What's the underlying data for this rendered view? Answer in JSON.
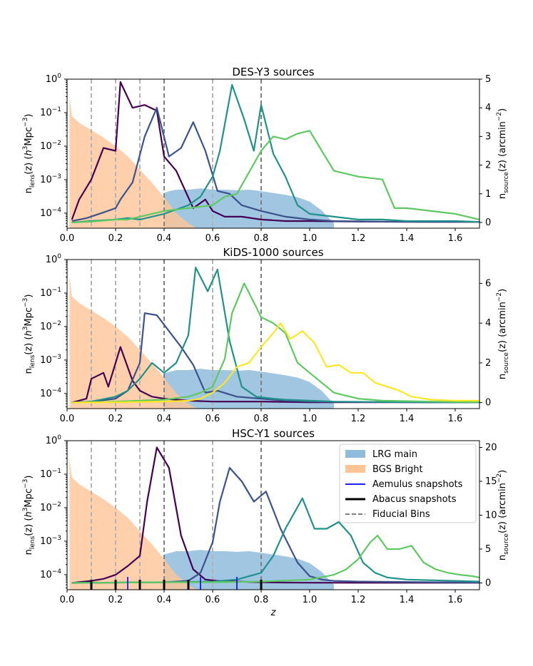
{
  "colors": {
    "lrg_fill": "#8fbcdc",
    "bgs_fill": "#ffc496",
    "aemulus": "#0000ff",
    "abacus": "#000000",
    "fiducial_light": "#b3b3b3",
    "fiducial_dark": "#808080",
    "bin1": "#440154",
    "bin2": "#3b528b",
    "bin3": "#21918c",
    "bin4": "#5ec962",
    "bin5": "#fde725"
  },
  "chart_data": [
    {
      "type": "line",
      "title": "DES-Y3 sources",
      "xlabel": "z",
      "ylabel_left": "n_lens(z) (h^3 Mpc^-3)",
      "ylabel_right": "n_source(z) (arcmin^-2)",
      "xlim": [
        0.0,
        1.7
      ],
      "ylim_left_log": [
        -4.45,
        0
      ],
      "ylim_right": [
        -0.2,
        5
      ],
      "x_ticks": [
        "0.0",
        "0.2",
        "0.4",
        "0.6",
        "0.8",
        "1.0",
        "1.2",
        "1.4",
        "1.6"
      ],
      "y_left_ticks": [
        {
          "exp": -4,
          "label": "10^-4"
        },
        {
          "exp": -3,
          "label": "10^-3"
        },
        {
          "exp": -2,
          "label": "10^-2"
        },
        {
          "exp": -1,
          "label": "10^-1"
        },
        {
          "exp": 0,
          "label": "10^0"
        }
      ],
      "y_right_ticks": [
        0,
        1,
        2,
        3,
        4,
        5
      ],
      "fiducial_bins": [
        0.1,
        0.2,
        0.3,
        0.4,
        0.6,
        0.8
      ],
      "lrg": {
        "x": [
          0.4,
          0.42,
          0.45,
          0.5,
          0.55,
          0.6,
          0.65,
          0.7,
          0.75,
          0.8,
          0.85,
          0.9,
          0.95,
          1.0,
          1.05,
          1.08,
          1.1
        ],
        "y": [
          0.0004,
          0.00045,
          0.0005,
          0.0005,
          0.00055,
          0.0005,
          0.0005,
          0.00048,
          0.0005,
          0.00045,
          0.0004,
          0.00035,
          0.0003,
          0.00022,
          0.00012,
          7e-05,
          5e-05
        ]
      },
      "bgs": {
        "x": [
          0.01,
          0.02,
          0.05,
          0.1,
          0.15,
          0.2,
          0.25,
          0.3,
          0.35,
          0.4,
          0.45,
          0.5,
          0.55,
          0.6
        ],
        "y": [
          0.3,
          0.08,
          0.05,
          0.03,
          0.018,
          0.01,
          0.005,
          0.002,
          0.0008,
          0.0003,
          0.0001,
          5e-05,
          3e-05,
          2e-05
        ]
      },
      "series": [
        {
          "name": "bin1",
          "color_key": "bin1",
          "x": [
            0.02,
            0.05,
            0.1,
            0.15,
            0.2,
            0.22,
            0.27,
            0.32,
            0.37,
            0.4,
            0.45,
            0.52,
            0.57,
            0.6,
            0.65,
            0.72,
            0.8,
            0.9,
            1.0,
            1.2,
            1.4,
            1.6,
            1.7
          ],
          "values": [
            0.1,
            0.8,
            1.5,
            2.6,
            2.5,
            4.9,
            4.0,
            4.1,
            3.9,
            2.3,
            1.8,
            0.5,
            0.8,
            0.4,
            0.2,
            0.2,
            0.1,
            0.05,
            0.05,
            0.03,
            0.02,
            0.02,
            0.02
          ]
        },
        {
          "name": "bin2",
          "color_key": "bin2",
          "x": [
            0.02,
            0.08,
            0.15,
            0.2,
            0.22,
            0.27,
            0.32,
            0.37,
            0.42,
            0.47,
            0.52,
            0.57,
            0.62,
            0.67,
            0.72,
            0.8,
            0.9,
            1.0,
            1.1,
            1.3,
            1.5,
            1.7
          ],
          "values": [
            0.05,
            0.15,
            0.35,
            0.5,
            0.8,
            1.4,
            3.0,
            4.0,
            2.3,
            2.6,
            3.5,
            2.5,
            1.1,
            1.0,
            0.6,
            0.4,
            0.2,
            0.1,
            0.05,
            0.03,
            0.02,
            0.02
          ]
        },
        {
          "name": "bin3",
          "color_key": "bin3",
          "x": [
            0.02,
            0.1,
            0.2,
            0.25,
            0.3,
            0.4,
            0.5,
            0.55,
            0.6,
            0.63,
            0.68,
            0.73,
            0.77,
            0.8,
            0.85,
            0.9,
            0.95,
            1.0,
            1.1,
            1.2,
            1.3,
            1.4,
            1.5,
            1.6,
            1.7
          ],
          "values": [
            0.0,
            0.05,
            0.1,
            0.15,
            0.1,
            0.3,
            0.6,
            0.9,
            1.6,
            2.5,
            4.8,
            3.6,
            2.5,
            4.1,
            2.4,
            1.6,
            0.6,
            0.3,
            0.2,
            0.1,
            0.1,
            0.05,
            0.05,
            0.05,
            0.02
          ]
        },
        {
          "name": "bin4",
          "color_key": "bin4",
          "x": [
            0.02,
            0.1,
            0.2,
            0.25,
            0.3,
            0.35,
            0.4,
            0.5,
            0.6,
            0.65,
            0.7,
            0.8,
            0.85,
            0.9,
            0.95,
            1.0,
            1.05,
            1.1,
            1.15,
            1.2,
            1.3,
            1.35,
            1.4,
            1.5,
            1.6,
            1.7
          ],
          "values": [
            0.0,
            0.03,
            0.1,
            0.1,
            0.2,
            0.3,
            0.4,
            0.5,
            0.6,
            0.9,
            1.0,
            2.5,
            3.0,
            2.9,
            3.1,
            3.2,
            2.5,
            1.8,
            1.7,
            1.6,
            1.5,
            0.5,
            0.5,
            0.4,
            0.3,
            0.1
          ]
        }
      ]
    },
    {
      "type": "line",
      "title": "KiDS-1000 sources",
      "xlabel": "z",
      "ylabel_left": "n_lens(z) (h^3 Mpc^-3)",
      "ylabel_right": "n_source(z) (arcmin^-2)",
      "xlim": [
        0.0,
        1.7
      ],
      "ylim_left_log": [
        -4.45,
        0
      ],
      "ylim_right": [
        -0.3,
        7.2
      ],
      "x_ticks": [
        "0.0",
        "0.2",
        "0.4",
        "0.6",
        "0.8",
        "1.0",
        "1.2",
        "1.4",
        "1.6"
      ],
      "y_left_ticks": [
        {
          "exp": -4,
          "label": "10^-4"
        },
        {
          "exp": -3,
          "label": "10^-3"
        },
        {
          "exp": -2,
          "label": "10^-2"
        },
        {
          "exp": -1,
          "label": "10^-1"
        },
        {
          "exp": 0,
          "label": "10^0"
        }
      ],
      "y_right_ticks": [
        0,
        2,
        4,
        6
      ],
      "fiducial_bins": [
        0.1,
        0.2,
        0.3,
        0.4,
        0.6,
        0.8
      ],
      "lrg": {
        "x": [
          0.4,
          0.45,
          0.5,
          0.55,
          0.6,
          0.65,
          0.7,
          0.75,
          0.8,
          0.85,
          0.9,
          0.95,
          1.0,
          1.05,
          1.08,
          1.1
        ],
        "y": [
          0.0004,
          0.0005,
          0.0005,
          0.00055,
          0.0005,
          0.0005,
          0.00048,
          0.0005,
          0.00045,
          0.0004,
          0.00035,
          0.0003,
          0.00022,
          0.00012,
          7e-05,
          5e-05
        ]
      },
      "bgs": {
        "x": [
          0.01,
          0.02,
          0.05,
          0.1,
          0.15,
          0.2,
          0.25,
          0.3,
          0.35,
          0.4,
          0.45,
          0.5,
          0.55,
          0.6
        ],
        "y": [
          0.3,
          0.08,
          0.05,
          0.03,
          0.018,
          0.01,
          0.005,
          0.002,
          0.0008,
          0.0003,
          0.0001,
          5e-05,
          3e-05,
          2e-05
        ]
      },
      "series": [
        {
          "name": "bin1",
          "color_key": "bin1",
          "x": [
            0.02,
            0.08,
            0.1,
            0.15,
            0.17,
            0.2,
            0.22,
            0.27,
            0.3,
            0.35,
            0.4,
            0.5,
            0.6,
            0.7,
            0.8,
            1.0,
            1.2,
            1.5,
            1.7
          ],
          "values": [
            0.0,
            0.2,
            1.2,
            1.5,
            0.8,
            2.0,
            2.8,
            1.1,
            0.6,
            0.3,
            0.2,
            0.1,
            0.05,
            0.05,
            0.05,
            0.02,
            0.02,
            0.02,
            0.02
          ]
        },
        {
          "name": "bin2",
          "color_key": "bin2",
          "x": [
            0.02,
            0.1,
            0.2,
            0.25,
            0.3,
            0.32,
            0.37,
            0.42,
            0.47,
            0.52,
            0.57,
            0.62,
            0.7,
            0.8,
            0.9,
            1.0,
            1.2,
            1.5,
            1.7
          ],
          "values": [
            0.0,
            0.05,
            0.2,
            0.6,
            2.0,
            4.5,
            4.4,
            3.6,
            2.8,
            1.9,
            0.5,
            0.6,
            0.3,
            0.2,
            0.1,
            0.05,
            0.03,
            0.02,
            0.02
          ]
        },
        {
          "name": "bin3",
          "color_key": "bin3",
          "x": [
            0.02,
            0.1,
            0.2,
            0.25,
            0.3,
            0.35,
            0.4,
            0.45,
            0.5,
            0.53,
            0.58,
            0.62,
            0.67,
            0.72,
            0.78,
            0.85,
            0.9,
            1.0,
            1.1,
            1.3,
            1.5,
            1.7
          ],
          "values": [
            0.0,
            0.05,
            0.3,
            0.6,
            1.2,
            2.0,
            1.5,
            2.0,
            3.4,
            6.8,
            5.6,
            6.7,
            3.1,
            0.8,
            0.3,
            0.2,
            0.15,
            0.1,
            0.05,
            0.03,
            0.02,
            0.02
          ]
        },
        {
          "name": "bin4",
          "color_key": "bin4",
          "x": [
            0.02,
            0.1,
            0.2,
            0.3,
            0.4,
            0.5,
            0.55,
            0.6,
            0.65,
            0.68,
            0.73,
            0.78,
            0.8,
            0.85,
            0.9,
            0.95,
            1.0,
            1.1,
            1.2,
            1.3,
            1.5,
            1.7
          ],
          "values": [
            0.0,
            0.02,
            0.05,
            0.1,
            0.15,
            0.3,
            0.5,
            0.8,
            2.2,
            4.5,
            6.0,
            4.8,
            4.3,
            4.0,
            3.5,
            2.0,
            1.5,
            0.5,
            0.2,
            0.1,
            0.05,
            0.02
          ]
        },
        {
          "name": "bin5",
          "color_key": "bin5",
          "x": [
            0.02,
            0.2,
            0.4,
            0.5,
            0.55,
            0.6,
            0.65,
            0.7,
            0.75,
            0.8,
            0.85,
            0.88,
            0.92,
            0.97,
            1.02,
            1.07,
            1.12,
            1.17,
            1.22,
            1.27,
            1.32,
            1.37,
            1.42,
            1.5,
            1.6,
            1.7
          ],
          "values": [
            0.0,
            0.02,
            0.05,
            0.1,
            0.2,
            0.5,
            1.0,
            1.8,
            2.0,
            2.8,
            3.5,
            4.0,
            3.2,
            3.6,
            3.0,
            1.8,
            1.9,
            1.5,
            1.5,
            1.0,
            0.8,
            0.6,
            0.3,
            0.15,
            0.1,
            0.1
          ]
        }
      ]
    },
    {
      "type": "line",
      "title": "HSC-Y1 sources",
      "xlabel": "z",
      "ylabel_left": "n_lens(z) (h^3 Mpc^-3)",
      "ylabel_right": "n_source(z) (arcmin^-2)",
      "xlim": [
        0.0,
        1.7
      ],
      "ylim_left_log": [
        -4.45,
        0
      ],
      "ylim_right": [
        -1,
        21
      ],
      "x_ticks": [
        "0.0",
        "0.2",
        "0.4",
        "0.6",
        "0.8",
        "1.0",
        "1.2",
        "1.4",
        "1.6"
      ],
      "y_left_ticks": [
        {
          "exp": -4,
          "label": "10^-4"
        },
        {
          "exp": -3,
          "label": "10^-3"
        },
        {
          "exp": -2,
          "label": "10^-2"
        },
        {
          "exp": -1,
          "label": "10^-1"
        },
        {
          "exp": 0,
          "label": "10^0"
        }
      ],
      "y_right_ticks": [
        0,
        5,
        10,
        15,
        20
      ],
      "fiducial_bins": [
        0.1,
        0.2,
        0.3,
        0.4,
        0.6,
        0.8
      ],
      "aemulus_snapshots": [
        0.25,
        0.55,
        0.7
      ],
      "abacus_snapshots": [
        0.1,
        0.2,
        0.3,
        0.4,
        0.5,
        0.8
      ],
      "lrg": {
        "x": [
          0.4,
          0.45,
          0.5,
          0.55,
          0.6,
          0.65,
          0.7,
          0.75,
          0.8,
          0.85,
          0.9,
          0.95,
          1.0,
          1.05,
          1.08,
          1.1
        ],
        "y": [
          0.0004,
          0.0005,
          0.0005,
          0.00055,
          0.0005,
          0.0005,
          0.00048,
          0.0005,
          0.00045,
          0.0004,
          0.00035,
          0.0003,
          0.00022,
          0.00012,
          7e-05,
          5e-05
        ]
      },
      "bgs": {
        "x": [
          0.01,
          0.02,
          0.05,
          0.1,
          0.15,
          0.2,
          0.25,
          0.3,
          0.35,
          0.4,
          0.45,
          0.5,
          0.55,
          0.6
        ],
        "y": [
          0.3,
          0.08,
          0.05,
          0.03,
          0.018,
          0.01,
          0.005,
          0.002,
          0.0008,
          0.0003,
          0.0001,
          5e-05,
          3e-05,
          2e-05
        ]
      },
      "series": [
        {
          "name": "bin1",
          "color_key": "bin1",
          "x": [
            0.02,
            0.1,
            0.15,
            0.2,
            0.25,
            0.3,
            0.33,
            0.37,
            0.42,
            0.47,
            0.52,
            0.57,
            0.62,
            0.7,
            0.8,
            0.9,
            1.0,
            1.2,
            1.5,
            1.7
          ],
          "values": [
            0.0,
            0.3,
            0.6,
            1.2,
            2.5,
            4.0,
            12.0,
            20.0,
            17.0,
            7.0,
            2.0,
            0.5,
            0.3,
            0.2,
            0.1,
            0.05,
            0.03,
            0.02,
            0.02,
            0.02
          ]
        },
        {
          "name": "bin2",
          "color_key": "bin2",
          "x": [
            0.02,
            0.2,
            0.4,
            0.5,
            0.55,
            0.6,
            0.63,
            0.67,
            0.72,
            0.77,
            0.82,
            0.88,
            0.95,
            1.0,
            1.05,
            1.1,
            1.2,
            1.5,
            1.7
          ],
          "values": [
            0.0,
            0.05,
            0.1,
            0.3,
            1.5,
            6.0,
            12.0,
            17.0,
            15.0,
            12.0,
            13.5,
            8.0,
            3.0,
            1.0,
            0.5,
            0.3,
            0.2,
            0.1,
            0.05
          ]
        },
        {
          "name": "bin3",
          "color_key": "bin3",
          "x": [
            0.02,
            0.4,
            0.6,
            0.7,
            0.8,
            0.85,
            0.9,
            0.97,
            1.02,
            1.07,
            1.12,
            1.17,
            1.22,
            1.27,
            1.32,
            1.4,
            1.5,
            1.6,
            1.7
          ],
          "values": [
            0.0,
            0.1,
            0.2,
            0.5,
            1.5,
            4.0,
            8.0,
            12.5,
            8.0,
            8.0,
            9.0,
            7.0,
            3.0,
            1.5,
            0.8,
            0.5,
            0.4,
            0.3,
            0.2
          ]
        },
        {
          "name": "bin4",
          "color_key": "bin4",
          "x": [
            0.02,
            0.4,
            0.6,
            0.8,
            1.0,
            1.1,
            1.15,
            1.2,
            1.25,
            1.28,
            1.32,
            1.37,
            1.42,
            1.47,
            1.52,
            1.57,
            1.62,
            1.67,
            1.7
          ],
          "values": [
            0.0,
            0.1,
            0.1,
            0.2,
            0.5,
            1.2,
            2.0,
            3.5,
            6.0,
            7.0,
            5.0,
            5.0,
            5.5,
            3.0,
            2.0,
            1.5,
            1.2,
            1.0,
            0.8
          ]
        }
      ]
    }
  ],
  "legend": {
    "entries": [
      {
        "label": "LRG main",
        "swatch": "patch",
        "color_key": "lrg_fill"
      },
      {
        "label": "BGS Bright",
        "swatch": "patch",
        "color_key": "bgs_fill"
      },
      {
        "label": "Aemulus snapshots",
        "swatch": "line",
        "color_key": "aemulus"
      },
      {
        "label": "Abacus snapshots",
        "swatch": "line",
        "color_key": "abacus"
      },
      {
        "label": "Fiducial Bins",
        "swatch": "dashed",
        "color_key": "fiducial_dark"
      }
    ]
  }
}
